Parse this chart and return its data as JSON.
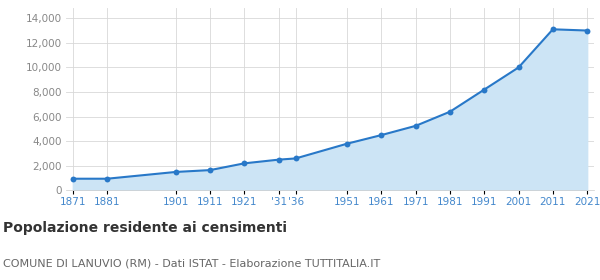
{
  "years": [
    1871,
    1881,
    1901,
    1911,
    1921,
    1931,
    1936,
    1951,
    1961,
    1971,
    1981,
    1991,
    2001,
    2011,
    2021
  ],
  "population": [
    950,
    950,
    1500,
    1650,
    2200,
    2500,
    2600,
    3800,
    4500,
    5250,
    6400,
    8200,
    10000,
    13100,
    13000
  ],
  "x_tick_labels": [
    "1871",
    "1881",
    "1901",
    "1911",
    "1921",
    "'31",
    "'36",
    "1951",
    "1961",
    "1971",
    "1981",
    "1991",
    "2001",
    "2011",
    "2021"
  ],
  "y_ticks": [
    0,
    2000,
    4000,
    6000,
    8000,
    10000,
    12000,
    14000
  ],
  "ylim": [
    0,
    14800
  ],
  "line_color": "#2878c8",
  "fill_color": "#cce4f5",
  "marker_color": "#2878c8",
  "grid_color": "#d8d8d8",
  "background_color": "#ffffff",
  "title": "Popolazione residente ai censimenti",
  "subtitle": "COMUNE DI LANUVIO (RM) - Dati ISTAT - Elaborazione TUTTITALIA.IT",
  "title_fontsize": 10,
  "subtitle_fontsize": 8,
  "tick_label_color_x": "#4488cc",
  "tick_label_color_y": "#888888",
  "tick_label_fontsize": 7.5
}
